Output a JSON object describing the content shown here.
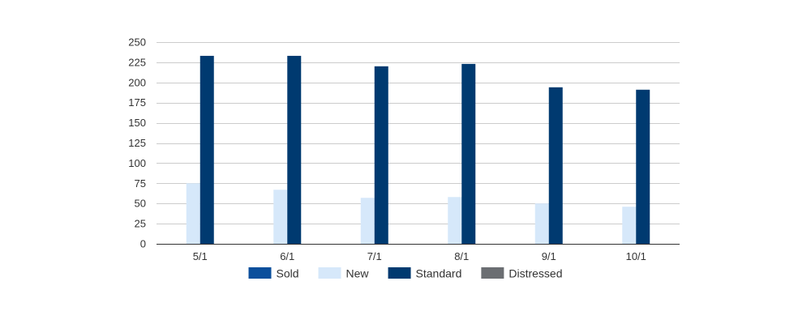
{
  "chart_data": {
    "type": "bar",
    "categories": [
      "5/1",
      "6/1",
      "7/1",
      "8/1",
      "9/1",
      "10/1"
    ],
    "series": [
      {
        "name": "Sold",
        "color": "#0b4f9c",
        "values": [
          0,
          0,
          0,
          0,
          0,
          0
        ]
      },
      {
        "name": "New",
        "color": "#d6e8fa",
        "values": [
          75,
          67,
          57,
          58,
          50,
          46
        ]
      },
      {
        "name": "Standard",
        "color": "#003a70",
        "values": [
          233,
          233,
          220,
          223,
          194,
          191
        ]
      },
      {
        "name": "Distressed",
        "color": "#6b6e72",
        "values": [
          0,
          0,
          0,
          0,
          0,
          0
        ]
      }
    ],
    "yticks": [
      "0",
      "25",
      "50",
      "75",
      "100",
      "125",
      "150",
      "175",
      "200",
      "225",
      "250"
    ],
    "ylim": [
      0,
      250
    ],
    "grid": true,
    "legend_position": "bottom"
  }
}
